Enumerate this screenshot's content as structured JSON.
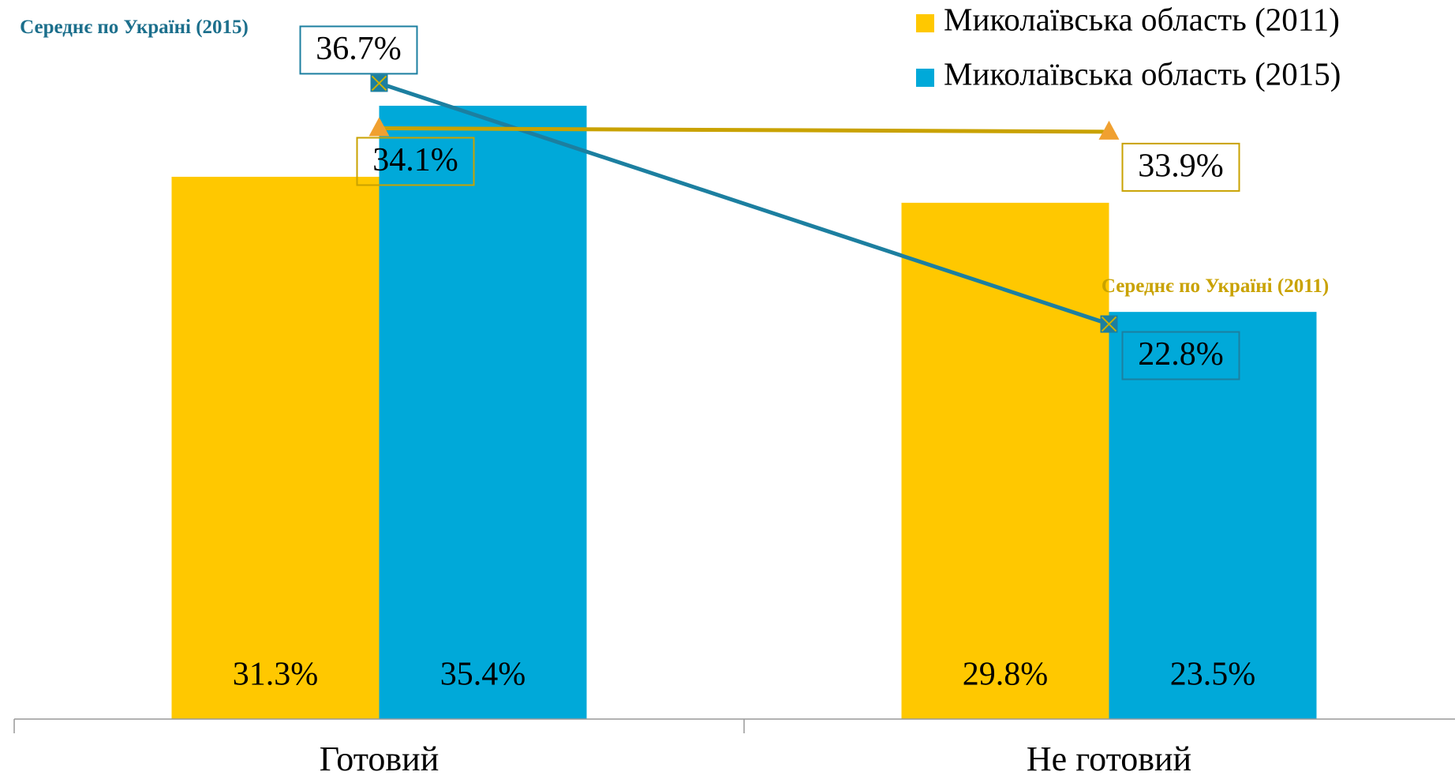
{
  "chart_data": {
    "type": "bar",
    "categories": [
      "Готовий",
      "Не готовий"
    ],
    "ylim": [
      0,
      40
    ],
    "series": [
      {
        "name": "Миколаївська область (2011)",
        "type": "bar",
        "color": "#FFC800",
        "values": [
          31.3,
          29.8
        ],
        "value_labels": [
          "31.3%",
          "29.8%"
        ]
      },
      {
        "name": "Миколаївська область (2015)",
        "type": "bar",
        "color": "#00A9D9",
        "values": [
          35.4,
          23.5
        ],
        "value_labels": [
          "35.4%",
          "23.5%"
        ]
      },
      {
        "name": "Середнє по Україні (2015)",
        "type": "line",
        "color": "#1C7FA0",
        "marker_color": "#1C7FA0",
        "marker": "x-square",
        "values": [
          36.7,
          22.8
        ],
        "value_labels": [
          "36.7%",
          "22.8%"
        ]
      },
      {
        "name": "Середнє по Україні (2011)",
        "type": "line",
        "color": "#C9A200",
        "marker_color": "#F0A030",
        "marker": "triangle",
        "values": [
          34.1,
          33.9
        ],
        "value_labels": [
          "34.1%",
          "33.9%"
        ]
      }
    ],
    "legend": "top-right"
  }
}
